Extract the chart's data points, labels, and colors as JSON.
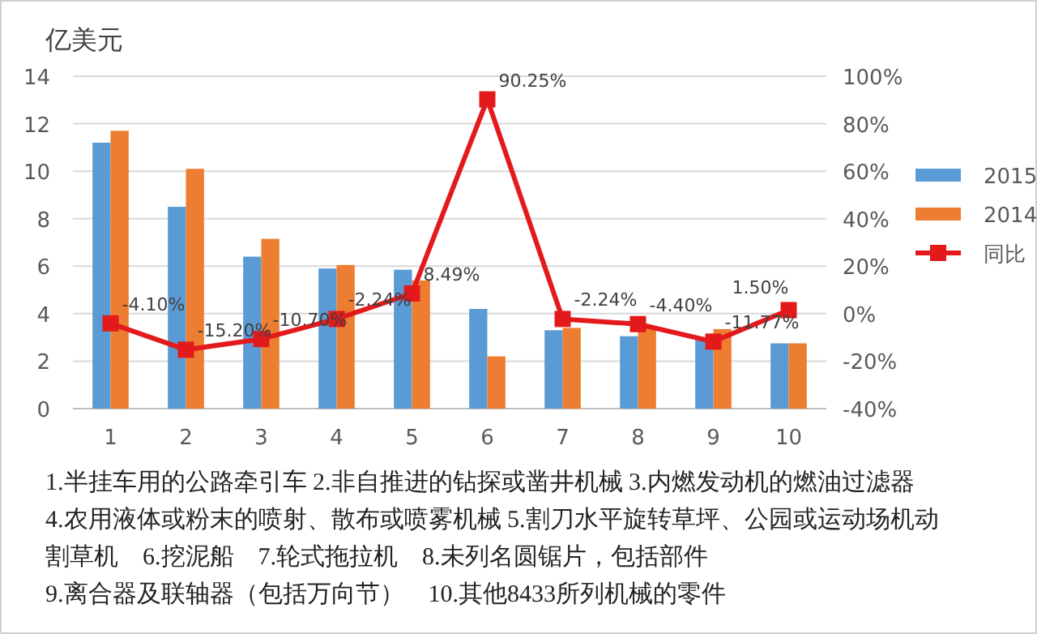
{
  "chart_data": {
    "type": "bar",
    "title": "亿美元",
    "categories": [
      "1",
      "2",
      "3",
      "4",
      "5",
      "6",
      "7",
      "8",
      "9",
      "10"
    ],
    "series": [
      {
        "name": "2015",
        "color": "#5b9bd5",
        "values": [
          11.2,
          8.5,
          6.4,
          5.9,
          5.85,
          4.2,
          3.3,
          3.05,
          2.9,
          2.75
        ]
      },
      {
        "name": "2014",
        "color": "#ed7d31",
        "values": [
          11.7,
          10.1,
          7.15,
          6.05,
          5.4,
          2.2,
          3.4,
          3.4,
          3.35,
          2.75
        ]
      },
      {
        "name": "同比",
        "type": "line",
        "axis": "y2",
        "color": "#e31a1c",
        "marker": "square",
        "values": [
          -4.1,
          -15.2,
          -10.7,
          -2.24,
          8.49,
          90.25,
          -2.24,
          -4.4,
          -11.77,
          1.5
        ],
        "value_labels": [
          "-4.10%",
          "-15.20%",
          "-10.70%",
          "-2.24%",
          "8.49%",
          "90.25%",
          "-2.24%",
          "-4.40%",
          "-11.77%",
          "1.50%"
        ]
      }
    ],
    "ylim": [
      0,
      14
    ],
    "yticks": [
      0,
      2,
      4,
      6,
      8,
      10,
      12,
      14
    ],
    "y2lim": [
      -40,
      100
    ],
    "y2ticks": [
      {
        "value": -40,
        "label": "-40%"
      },
      {
        "value": -20,
        "label": "-20%"
      },
      {
        "value": 0,
        "label": "0%"
      },
      {
        "value": 20,
        "label": "20%"
      },
      {
        "value": 40,
        "label": "40%"
      },
      {
        "value": 60,
        "label": "60%"
      },
      {
        "value": 80,
        "label": "80%"
      },
      {
        "value": 100,
        "label": "100%"
      }
    ],
    "grid": "y",
    "legend": "right",
    "annotations": [
      "1.半挂车用的公路牵引车 2.非自推进的钻探或凿井机械 3.内燃发动机的燃油过滤器",
      "4.农用液体或粉末的喷射、散布或喷雾机械 5.割刀水平旋转草坪、公园或运动场机动",
      "割草机　6.挖泥船　7.轮式拖拉机　8.未列名圆锯片，包括部件",
      "9.离合器及联轴器（包括万向节）　10.其他8433所列机械的零件"
    ]
  }
}
